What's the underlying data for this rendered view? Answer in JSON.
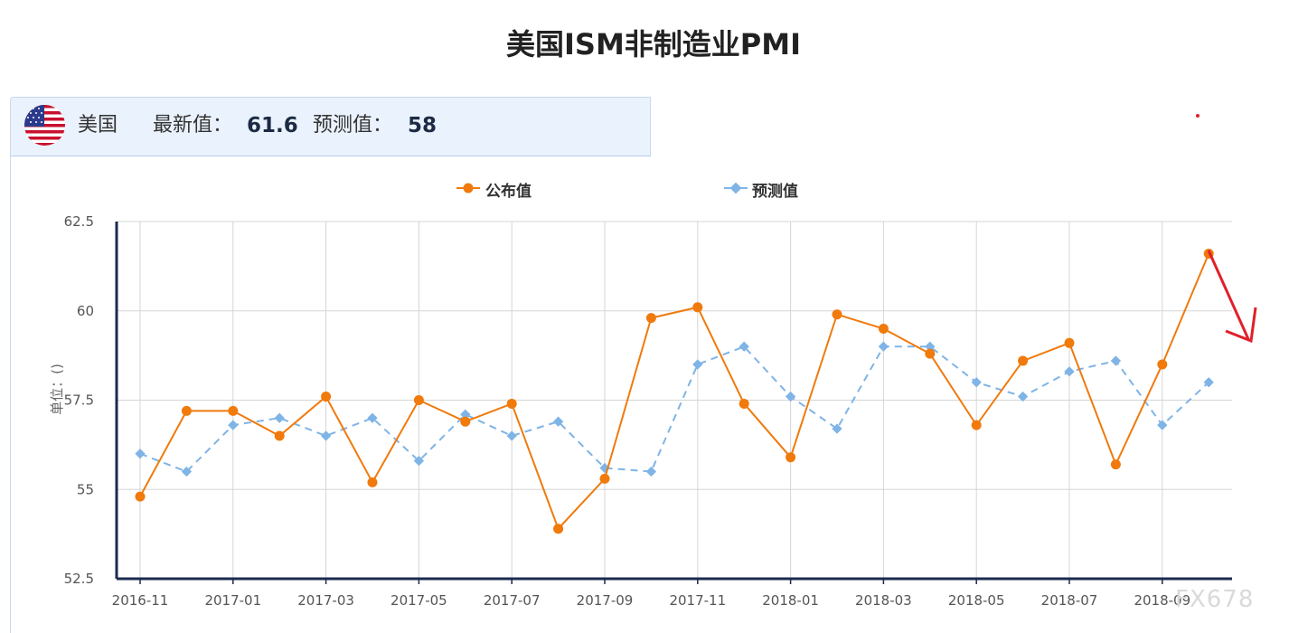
{
  "title": "美国ISM非制造业PMI",
  "info": {
    "country": "美国",
    "latest_label": "最新值：",
    "latest_value": "61.6",
    "forecast_label": "预测值：",
    "forecast_value": "58"
  },
  "watermark": "FX678",
  "colors": {
    "published": "#f07a0c",
    "forecast": "#7fb4e6",
    "axis": "#1c2a50",
    "grid": "#d5d5d5",
    "arrow": "#e0202a"
  },
  "chart_data": {
    "type": "line",
    "title": "美国ISM非制造业PMI",
    "ylabel": "单位：()",
    "ylim": [
      52.5,
      62.5
    ],
    "yticks": [
      "62.5",
      "60",
      "57.5",
      "55",
      "52.5"
    ],
    "x": [
      "2016-11",
      "2016-12",
      "2017-01",
      "2017-02",
      "2017-03",
      "2017-04",
      "2017-05",
      "2017-06",
      "2017-07",
      "2017-08",
      "2017-09",
      "2017-10",
      "2017-11",
      "2017-12",
      "2018-01",
      "2018-02",
      "2018-03",
      "2018-04",
      "2018-05",
      "2018-06",
      "2018-07",
      "2018-08",
      "2018-09",
      "2018-10"
    ],
    "xtick_labels": [
      "2016-11",
      "2017-01",
      "2017-03",
      "2017-05",
      "2017-07",
      "2017-09",
      "2017-11",
      "2018-01",
      "2018-03",
      "2018-05",
      "2018-07",
      "2018-09"
    ],
    "legend": "top-center",
    "grid": true,
    "series": [
      {
        "name": "公布值",
        "style": "solid-circle",
        "values": [
          54.8,
          57.2,
          57.2,
          56.5,
          57.6,
          55.2,
          57.5,
          56.9,
          57.4,
          53.9,
          55.3,
          59.8,
          60.1,
          57.4,
          55.9,
          59.9,
          59.5,
          58.8,
          56.8,
          58.6,
          59.1,
          55.7,
          58.5,
          61.6
        ]
      },
      {
        "name": "预测值",
        "style": "dashed-diamond",
        "values": [
          56.0,
          55.5,
          56.8,
          57.0,
          56.5,
          57.0,
          55.8,
          57.1,
          56.5,
          56.9,
          55.6,
          55.5,
          58.5,
          59.0,
          57.6,
          56.7,
          59.0,
          59.0,
          58.0,
          57.6,
          58.3,
          58.6,
          56.8,
          58.0
        ]
      }
    ]
  }
}
